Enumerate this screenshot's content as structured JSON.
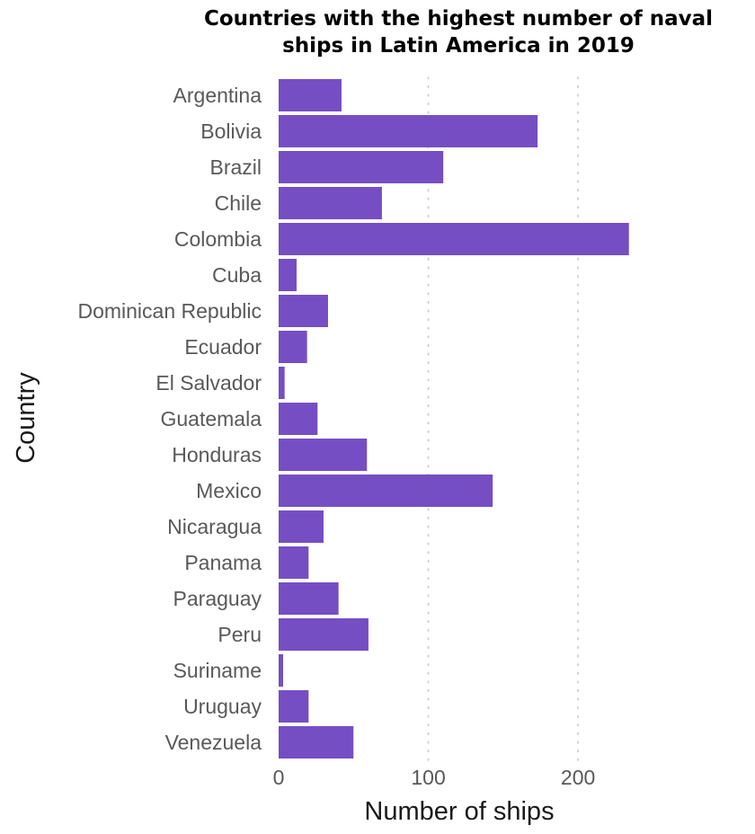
{
  "chart_data": {
    "type": "bar",
    "orientation": "horizontal",
    "title_lines": [
      "Countries with the highest number of naval",
      "ships in Latin America in 2019"
    ],
    "xlabel": "Number of ships",
    "ylabel": "Country",
    "xlim": [
      0,
      290
    ],
    "xticks": [
      0,
      100,
      200
    ],
    "grid": "vertical dotted major lines",
    "bar_color": "#764ec3",
    "categories": [
      "Argentina",
      "Bolivia",
      "Brazil",
      "Chile",
      "Colombia",
      "Cuba",
      "Dominican Republic",
      "Ecuador",
      "El Salvador",
      "Guatemala",
      "Honduras",
      "Mexico",
      "Nicaragua",
      "Panama",
      "Paraguay",
      "Peru",
      "Suriname",
      "Uruguay",
      "Venezuela"
    ],
    "values": [
      42,
      173,
      110,
      69,
      234,
      12,
      33,
      19,
      4,
      26,
      59,
      143,
      30,
      20,
      40,
      60,
      3,
      20,
      50
    ]
  }
}
